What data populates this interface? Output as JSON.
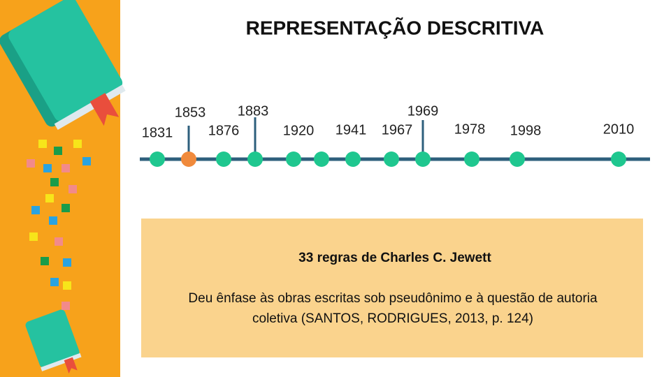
{
  "header": {
    "title": "REPRESENTAÇÃO DESCRITIVA"
  },
  "timeline": {
    "labels": [
      "1831",
      "1853",
      "1876",
      "1883",
      "1920",
      "1941",
      "1967",
      "1969",
      "1978",
      "1998",
      "2010"
    ]
  },
  "box": {
    "heading": "33 regras de Charles C. Jewett",
    "lines": [
      "Deu ênfase às obras escritas sob pseudônimo e à questão de autoria",
      "coletiva (SANTOS, RODRIGUES, 2013, p. 124)"
    ]
  }
}
